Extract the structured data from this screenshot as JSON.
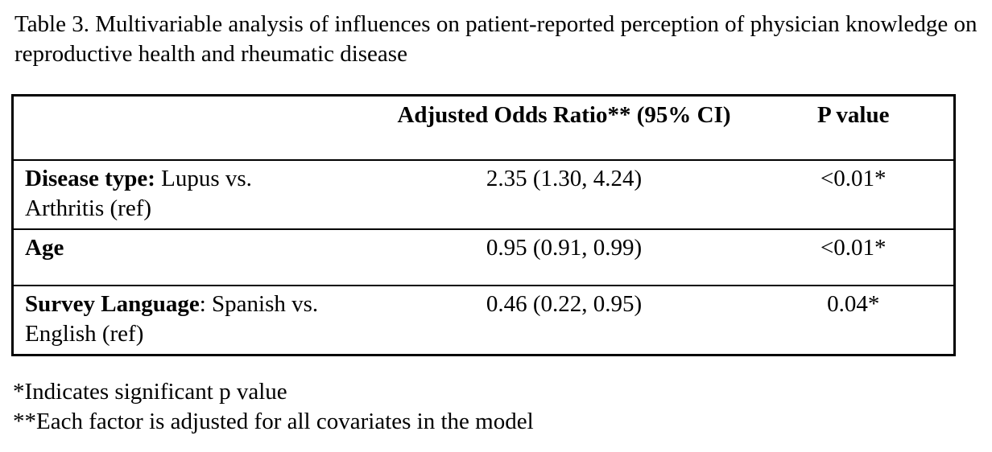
{
  "caption": "Table 3. Multivariable analysis of influences on patient-reported perception of physician knowledge on reproductive health and rheumatic disease",
  "table": {
    "header": {
      "factor": "",
      "odds_ratio": "Adjusted Odds Ratio** (95% CI)",
      "p_value": "P value"
    },
    "rows": [
      {
        "factor_bold": "Disease type:",
        "factor_rest": " Lupus vs. Arthritis (ref)",
        "odds_ratio": "2.35 (1.30, 4.24)",
        "p_value": "<0.01*"
      },
      {
        "factor_bold": "Age",
        "factor_rest": "",
        "odds_ratio": "0.95 (0.91, 0.99)",
        "p_value": "<0.01*"
      },
      {
        "factor_bold": "Survey Language",
        "factor_rest": ": Spanish vs. English (ref)",
        "odds_ratio": "0.46 (0.22, 0.95)",
        "p_value": "0.04*"
      }
    ]
  },
  "footnotes": [
    "*Indicates significant p value",
    "**Each factor is adjusted for all covariates in the model"
  ]
}
